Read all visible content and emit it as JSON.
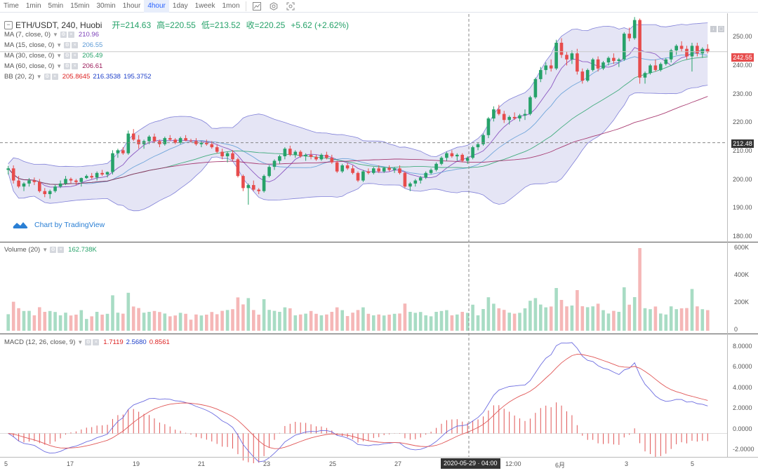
{
  "toolbar": {
    "intervals": [
      "Time",
      "1min",
      "5min",
      "15min",
      "30min",
      "1hour",
      "4hour",
      "1day",
      "1week",
      "1mon"
    ],
    "active_interval": "4hour",
    "icons": [
      "chart-type-icon",
      "settings-icon",
      "screenshot-icon"
    ]
  },
  "header": {
    "symbol": "ETH/USDT, 240, Huobi",
    "ohlc": {
      "open_label": "开",
      "open": "214.63",
      "high_label": "高",
      "high": "220.55",
      "low_label": "低",
      "low": "213.52",
      "close_label": "收",
      "close": "220.25",
      "change": "+5.62 (+2.62%)"
    }
  },
  "indicators": [
    {
      "label": "MA (7, close, 0)",
      "values": [
        "210.96"
      ],
      "colors": [
        "#7b3fb8"
      ]
    },
    {
      "label": "MA (15, close, 0)",
      "values": [
        "206.55"
      ],
      "colors": [
        "#5d9bd6"
      ]
    },
    {
      "label": "MA (30, close, 0)",
      "values": [
        "205.49"
      ],
      "colors": [
        "#26a269"
      ]
    },
    {
      "label": "MA (60, close, 0)",
      "values": [
        "206.61"
      ],
      "colors": [
        "#9b1c5b"
      ]
    },
    {
      "label": "BB (20, 2)",
      "values": [
        "205.8645",
        "216.3538",
        "195.3752"
      ],
      "colors": [
        "#d22",
        "#1d3fc9",
        "#1d3fc9"
      ]
    }
  ],
  "volume": {
    "label": "Volume (20)",
    "value": "162.738K",
    "value_color": "#26a269"
  },
  "macd": {
    "label": "MACD (12, 26, close, 9)",
    "values": [
      "1.7119",
      "2.5680",
      "0.8561"
    ],
    "colors": [
      "#d22",
      "#1d3fc9",
      "#d22"
    ]
  },
  "watermark": "Chart by TradingView",
  "price_axis": {
    "labels": [
      "250.00",
      "240.00",
      "230.00",
      "220.00",
      "210.00",
      "200.00",
      "190.00",
      "180.00"
    ],
    "last_price": "242.55",
    "crosshair_price": "212.48"
  },
  "volume_axis": {
    "labels": [
      "600K",
      "400K",
      "200K",
      "0"
    ]
  },
  "macd_axis": {
    "labels": [
      "8.0000",
      "6.0000",
      "4.0000",
      "2.0000",
      "0.0000",
      "-2.0000"
    ]
  },
  "time_axis": {
    "labels": [
      "5",
      "17",
      "19",
      "21",
      "23",
      "25",
      "27",
      "12:00",
      "6月",
      "3",
      "5"
    ],
    "crosshair_time": "2020-05-29 · 04:00"
  },
  "colors": {
    "up": "#26a269",
    "down": "#e74c4c",
    "band": "#dcdcf2",
    "band_line": "#8080d8"
  },
  "chart_data": {
    "type": "candlestick",
    "symbol": "ETH/USDT",
    "interval": "4 hour",
    "price_range": [
      180,
      255
    ],
    "candles": [
      [
        203.5,
        204.8,
        202.0,
        204.0
      ],
      [
        204.0,
        205.0,
        199.0,
        200.0
      ],
      [
        200.0,
        201.5,
        197.5,
        198.0
      ],
      [
        198.0,
        199.5,
        196.5,
        199.0
      ],
      [
        199.0,
        200.8,
        198.0,
        200.0
      ],
      [
        200.0,
        201.0,
        198.5,
        199.5
      ],
      [
        199.5,
        200.5,
        196.0,
        196.5
      ],
      [
        196.5,
        197.5,
        194.5,
        195.5
      ],
      [
        195.5,
        197.0,
        194.0,
        196.5
      ],
      [
        196.5,
        198.5,
        196.0,
        198.0
      ],
      [
        198.0,
        200.0,
        197.5,
        199.0
      ],
      [
        199.0,
        201.5,
        198.5,
        200.5
      ],
      [
        200.5,
        201.0,
        199.0,
        200.0
      ],
      [
        200.0,
        200.5,
        198.5,
        199.5
      ],
      [
        199.5,
        201.0,
        198.0,
        200.8
      ],
      [
        200.8,
        202.0,
        200.5,
        201.5
      ],
      [
        201.5,
        202.5,
        200.5,
        201.0
      ],
      [
        201.0,
        203.0,
        200.0,
        202.5
      ],
      [
        202.5,
        203.5,
        201.5,
        202.0
      ],
      [
        202.0,
        203.0,
        201.0,
        202.8
      ],
      [
        202.8,
        210.0,
        202.0,
        209.0
      ],
      [
        209.0,
        210.5,
        207.5,
        210.0
      ],
      [
        210.0,
        211.0,
        208.5,
        209.0
      ],
      [
        209.0,
        216.5,
        208.5,
        215.5
      ],
      [
        215.5,
        217.0,
        213.0,
        213.5
      ],
      [
        213.5,
        215.0,
        210.5,
        212.0
      ],
      [
        212.0,
        213.5,
        210.5,
        213.0
      ],
      [
        213.0,
        215.0,
        212.0,
        214.5
      ],
      [
        214.5,
        215.5,
        212.5,
        213.0
      ],
      [
        213.0,
        213.5,
        211.0,
        212.0
      ],
      [
        212.0,
        214.5,
        211.5,
        214.0
      ],
      [
        214.0,
        215.0,
        213.0,
        213.5
      ],
      [
        213.5,
        214.0,
        212.0,
        212.5
      ],
      [
        212.5,
        214.5,
        212.0,
        214.0
      ],
      [
        214.0,
        215.0,
        213.0,
        213.2
      ],
      [
        213.2,
        213.8,
        212.5,
        213.0
      ],
      [
        213.0,
        214.0,
        211.5,
        212.0
      ],
      [
        212.0,
        213.0,
        211.0,
        212.5
      ],
      [
        212.5,
        213.5,
        211.5,
        212.0
      ],
      [
        212.0,
        213.0,
        210.5,
        211.0
      ],
      [
        211.0,
        211.8,
        209.0,
        209.5
      ],
      [
        209.5,
        210.5,
        207.0,
        208.0
      ],
      [
        208.0,
        209.5,
        206.0,
        209.0
      ],
      [
        209.0,
        210.0,
        206.5,
        207.0
      ],
      [
        207.0,
        207.5,
        201.0,
        201.5
      ],
      [
        201.5,
        202.0,
        196.5,
        197.5
      ],
      [
        197.5,
        199.0,
        192.0,
        198.5
      ],
      [
        198.5,
        200.0,
        196.5,
        197.0
      ],
      [
        197.0,
        197.5,
        195.5,
        196.5
      ],
      [
        196.5,
        202.0,
        196.0,
        201.5
      ],
      [
        201.5,
        205.0,
        201.0,
        204.5
      ],
      [
        204.5,
        207.0,
        203.5,
        206.5
      ],
      [
        206.5,
        208.5,
        205.5,
        208.0
      ],
      [
        208.0,
        211.0,
        207.0,
        210.5
      ],
      [
        210.5,
        211.5,
        208.0,
        208.5
      ],
      [
        208.5,
        210.0,
        207.5,
        209.5
      ],
      [
        209.5,
        210.0,
        207.5,
        208.0
      ],
      [
        208.0,
        209.0,
        206.5,
        208.5
      ],
      [
        208.5,
        210.0,
        207.0,
        207.8
      ],
      [
        207.8,
        208.5,
        206.5,
        207.0
      ],
      [
        207.0,
        209.0,
        206.5,
        208.5
      ],
      [
        208.5,
        209.5,
        207.0,
        207.5
      ],
      [
        207.5,
        208.5,
        205.5,
        206.0
      ],
      [
        206.0,
        206.5,
        202.5,
        203.0
      ],
      [
        203.0,
        205.5,
        202.5,
        205.0
      ],
      [
        205.0,
        205.8,
        203.5,
        204.0
      ],
      [
        204.0,
        205.0,
        202.0,
        202.5
      ],
      [
        202.5,
        203.0,
        199.5,
        200.0
      ],
      [
        200.0,
        203.5,
        199.5,
        203.0
      ],
      [
        203.0,
        204.0,
        202.0,
        202.5
      ],
      [
        202.5,
        204.5,
        202.0,
        204.0
      ],
      [
        204.0,
        205.0,
        202.5,
        203.0
      ],
      [
        203.0,
        204.5,
        202.5,
        204.2
      ],
      [
        204.2,
        205.0,
        203.0,
        203.5
      ],
      [
        203.5,
        204.5,
        202.5,
        204.0
      ],
      [
        204.0,
        205.0,
        202.0,
        202.5
      ],
      [
        202.5,
        203.0,
        197.5,
        198.0
      ],
      [
        198.0,
        199.5,
        196.5,
        199.0
      ],
      [
        199.0,
        200.5,
        198.0,
        200.0
      ],
      [
        200.0,
        201.5,
        199.0,
        201.0
      ],
      [
        201.0,
        203.0,
        200.5,
        202.5
      ],
      [
        202.5,
        204.0,
        202.0,
        203.5
      ],
      [
        203.5,
        206.0,
        203.0,
        205.5
      ],
      [
        205.5,
        208.0,
        205.0,
        207.5
      ],
      [
        207.5,
        209.5,
        206.5,
        209.0
      ],
      [
        209.0,
        210.0,
        207.5,
        208.0
      ],
      [
        208.0,
        209.0,
        206.5,
        208.5
      ],
      [
        208.5,
        209.0,
        206.0,
        206.5
      ],
      [
        206.5,
        208.0,
        205.5,
        207.5
      ],
      [
        207.5,
        211.5,
        207.0,
        211.0
      ],
      [
        211.0,
        212.5,
        210.0,
        212.0
      ],
      [
        212.0,
        215.5,
        211.5,
        215.0
      ],
      [
        215.0,
        221.0,
        214.0,
        220.5
      ],
      [
        220.5,
        224.5,
        219.5,
        223.5
      ],
      [
        223.5,
        225.0,
        221.5,
        222.0
      ],
      [
        222.0,
        223.0,
        219.0,
        220.0
      ],
      [
        220.0,
        221.5,
        218.5,
        221.0
      ],
      [
        221.0,
        222.5,
        220.0,
        220.5
      ],
      [
        220.5,
        222.0,
        219.5,
        221.5
      ],
      [
        221.5,
        223.5,
        220.0,
        222.0
      ],
      [
        222.0,
        228.0,
        221.5,
        227.5
      ],
      [
        227.5,
        234.0,
        227.0,
        233.5
      ],
      [
        233.5,
        237.5,
        232.5,
        236.5
      ],
      [
        236.5,
        239.0,
        235.0,
        238.0
      ],
      [
        238.0,
        240.0,
        236.0,
        237.0
      ],
      [
        237.0,
        246.5,
        236.5,
        245.5
      ],
      [
        245.5,
        247.0,
        240.5,
        241.5
      ],
      [
        241.5,
        242.5,
        238.0,
        240.0
      ],
      [
        240.0,
        243.0,
        238.5,
        242.0
      ],
      [
        242.0,
        243.5,
        235.0,
        236.0
      ],
      [
        236.0,
        237.0,
        232.0,
        233.0
      ],
      [
        233.0,
        237.0,
        232.5,
        236.5
      ],
      [
        236.5,
        240.5,
        236.0,
        240.0
      ],
      [
        240.0,
        241.0,
        236.0,
        237.0
      ],
      [
        237.0,
        239.5,
        236.5,
        239.0
      ],
      [
        239.0,
        241.0,
        238.0,
        240.5
      ],
      [
        240.5,
        242.0,
        238.5,
        239.5
      ],
      [
        239.5,
        240.5,
        237.5,
        240.0
      ],
      [
        240.0,
        249.0,
        239.5,
        248.5
      ],
      [
        248.5,
        250.5,
        246.0,
        247.0
      ],
      [
        247.0,
        254.0,
        246.5,
        253.0
      ],
      [
        253.0,
        253.5,
        232.0,
        234.0
      ],
      [
        234.0,
        236.0,
        232.0,
        235.5
      ],
      [
        235.5,
        238.5,
        235.0,
        238.0
      ],
      [
        238.0,
        240.0,
        236.0,
        236.5
      ],
      [
        236.5,
        239.0,
        236.0,
        238.5
      ],
      [
        238.5,
        240.5,
        238.0,
        240.0
      ],
      [
        240.0,
        243.5,
        239.0,
        243.0
      ],
      [
        243.0,
        245.0,
        241.5,
        244.5
      ],
      [
        244.5,
        246.0,
        242.5,
        243.5
      ],
      [
        243.5,
        244.5,
        240.0,
        241.0
      ],
      [
        241.0,
        245.5,
        236.0,
        244.5
      ],
      [
        244.5,
        245.5,
        241.0,
        242.0
      ],
      [
        242.0,
        244.0,
        240.5,
        243.5
      ],
      [
        243.5,
        245.0,
        242.0,
        242.55
      ]
    ],
    "volume_range": [
      0,
      600000
    ],
    "macd_range": [
      -2,
      8.8
    ]
  }
}
